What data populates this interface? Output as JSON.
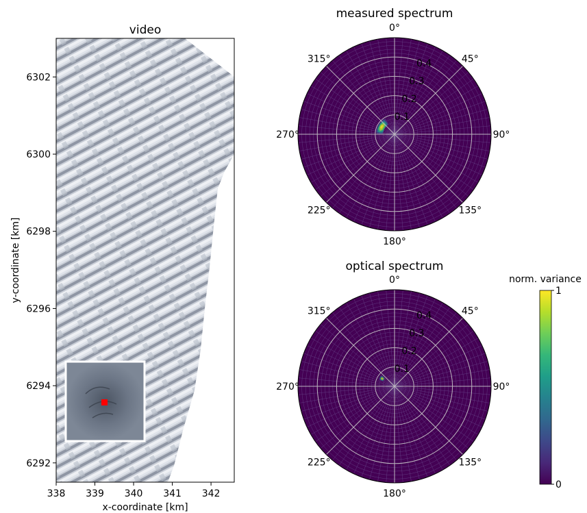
{
  "chart_data": [
    {
      "type": "heatmap",
      "title": "video",
      "xlabel": "x-coordinate [km]",
      "ylabel": "y-coordinate [km]",
      "xlim": [
        338,
        342.6
      ],
      "ylim": [
        6291.5,
        6303
      ],
      "xticks": [
        "338",
        "339",
        "340",
        "341",
        "342"
      ],
      "yticks": [
        "6292",
        "6294",
        "6296",
        "6298",
        "6300",
        "6302"
      ],
      "xtick_values": [
        338,
        339,
        340,
        341,
        342
      ],
      "ytick_values": [
        6292,
        6294,
        6296,
        6298,
        6300,
        6302
      ],
      "inset": {
        "x_range": [
          338.3,
          340.3
        ],
        "y_range": [
          6292.6,
          6294.6
        ],
        "marker_x": 339.25,
        "marker_y": 6293.6,
        "marker_color": "#ff0000"
      },
      "image_colors": {
        "wave_light": "#dfe3ea",
        "wave_dark": "#8f96a4",
        "inset_bg": "#7d8796"
      }
    },
    {
      "type": "heatmap",
      "title": "measured spectrum",
      "projection": "polar",
      "theta_labels": [
        "0°",
        "45°",
        "90°",
        "135°",
        "180°",
        "225°",
        "270°",
        "315°"
      ],
      "r_labels": [
        "0.1",
        "0.2",
        "0.3",
        "0.4"
      ],
      "r_values": [
        0.1,
        0.2,
        0.3,
        0.4
      ],
      "rmax": 0.5,
      "grid": true,
      "peak": {
        "direction_deg": 300,
        "r_min": 0.06,
        "r_max": 0.1,
        "spread_deg": 60,
        "value": 1
      }
    },
    {
      "type": "heatmap",
      "title": "optical spectrum",
      "projection": "polar",
      "theta_labels": [
        "0°",
        "45°",
        "90°",
        "135°",
        "180°",
        "225°",
        "270°",
        "315°"
      ],
      "r_labels": [
        "0.1",
        "0.2",
        "0.3",
        "0.4"
      ],
      "r_values": [
        0.1,
        0.2,
        0.3,
        0.4
      ],
      "rmax": 0.5,
      "grid": true,
      "peak": {
        "direction_deg": 302,
        "r_min": 0.065,
        "r_max": 0.09,
        "spread_deg": 18,
        "value": 1
      }
    }
  ],
  "colorbar": {
    "label": "norm. variance",
    "min_label": "0",
    "max_label": "1",
    "min": 0,
    "max": 1,
    "colormap": [
      "#440154",
      "#482878",
      "#3e4989",
      "#31688e",
      "#26828e",
      "#1f9e89",
      "#35b779",
      "#6ece58",
      "#b5de2b",
      "#fde725"
    ]
  }
}
